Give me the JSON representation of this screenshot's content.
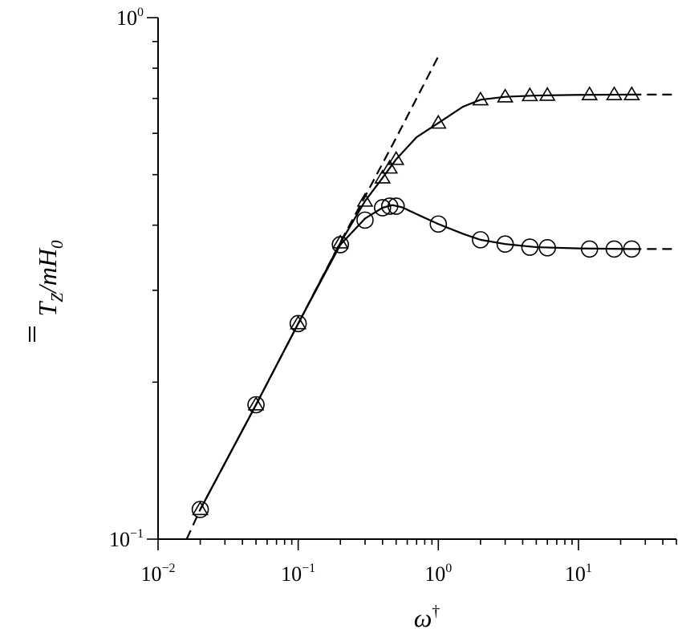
{
  "chart_data": {
    "type": "line",
    "title": "",
    "x_scale": "log",
    "y_scale": "log",
    "xlim": [
      0.01,
      50
    ],
    "ylim": [
      0.1,
      1.0
    ],
    "grid": false,
    "xlabel": {
      "base": "ω",
      "sup": "†"
    },
    "ylabel": {
      "base": "T",
      "sub": "Z",
      "rest": "/mH",
      "sub2": "0",
      "overbar": "double"
    },
    "x_tick_labels": [
      {
        "value": 0.01,
        "base": "10",
        "exp": "−2"
      },
      {
        "value": 0.1,
        "base": "10",
        "exp": "−1"
      },
      {
        "value": 1,
        "base": "10",
        "exp": "0"
      },
      {
        "value": 10,
        "base": "10",
        "exp": "1"
      }
    ],
    "y_tick_labels": [
      {
        "value": 0.1,
        "base": "10",
        "exp": "−1"
      },
      {
        "value": 1.0,
        "base": "10",
        "exp": "0"
      }
    ],
    "series": [
      {
        "style": "asymptote-dashed",
        "x": [
          0.016,
          0.02,
          0.05,
          0.1,
          0.2,
          0.3,
          0.5,
          1.0
        ],
        "y": [
          0.1,
          0.114,
          0.181,
          0.259,
          0.371,
          0.454,
          0.588,
          0.843
        ]
      },
      {
        "style": "triangle-markers-line",
        "x": [
          0.02,
          0.05,
          0.1,
          0.2,
          0.3,
          0.4,
          0.45,
          0.5,
          1.0,
          2.0,
          3.0,
          4.5,
          6.0,
          12.0,
          18.0,
          24.0
        ],
        "y": [
          0.114,
          0.181,
          0.259,
          0.37,
          0.445,
          0.493,
          0.515,
          0.535,
          0.628,
          0.696,
          0.705,
          0.709,
          0.71,
          0.712,
          0.712,
          0.712
        ],
        "line_x": [
          0.02,
          0.05,
          0.1,
          0.2,
          0.3,
          0.4,
          0.5,
          0.7,
          1.0,
          1.5,
          2.0,
          3.0,
          5.0,
          10.0,
          24.0
        ],
        "line_y": [
          0.114,
          0.181,
          0.259,
          0.37,
          0.445,
          0.493,
          0.535,
          0.59,
          0.628,
          0.675,
          0.696,
          0.705,
          0.709,
          0.711,
          0.712
        ],
        "asymptote": 0.712
      },
      {
        "style": "circle-markers-line",
        "x": [
          0.02,
          0.05,
          0.1,
          0.2,
          0.3,
          0.4,
          0.45,
          0.5,
          1.0,
          2.0,
          3.0,
          4.5,
          6.0,
          12.0,
          18.0,
          24.0
        ],
        "y": [
          0.114,
          0.181,
          0.259,
          0.367,
          0.409,
          0.432,
          0.435,
          0.435,
          0.402,
          0.375,
          0.368,
          0.363,
          0.362,
          0.36,
          0.36,
          0.36
        ],
        "line_x": [
          0.02,
          0.05,
          0.1,
          0.2,
          0.3,
          0.4,
          0.47,
          0.55,
          0.7,
          1.0,
          1.5,
          2.0,
          3.0,
          5.0,
          10.0,
          24.0
        ],
        "line_y": [
          0.114,
          0.181,
          0.259,
          0.367,
          0.412,
          0.432,
          0.437,
          0.433,
          0.42,
          0.402,
          0.385,
          0.375,
          0.368,
          0.363,
          0.361,
          0.36
        ],
        "asymptote": 0.36
      }
    ]
  }
}
